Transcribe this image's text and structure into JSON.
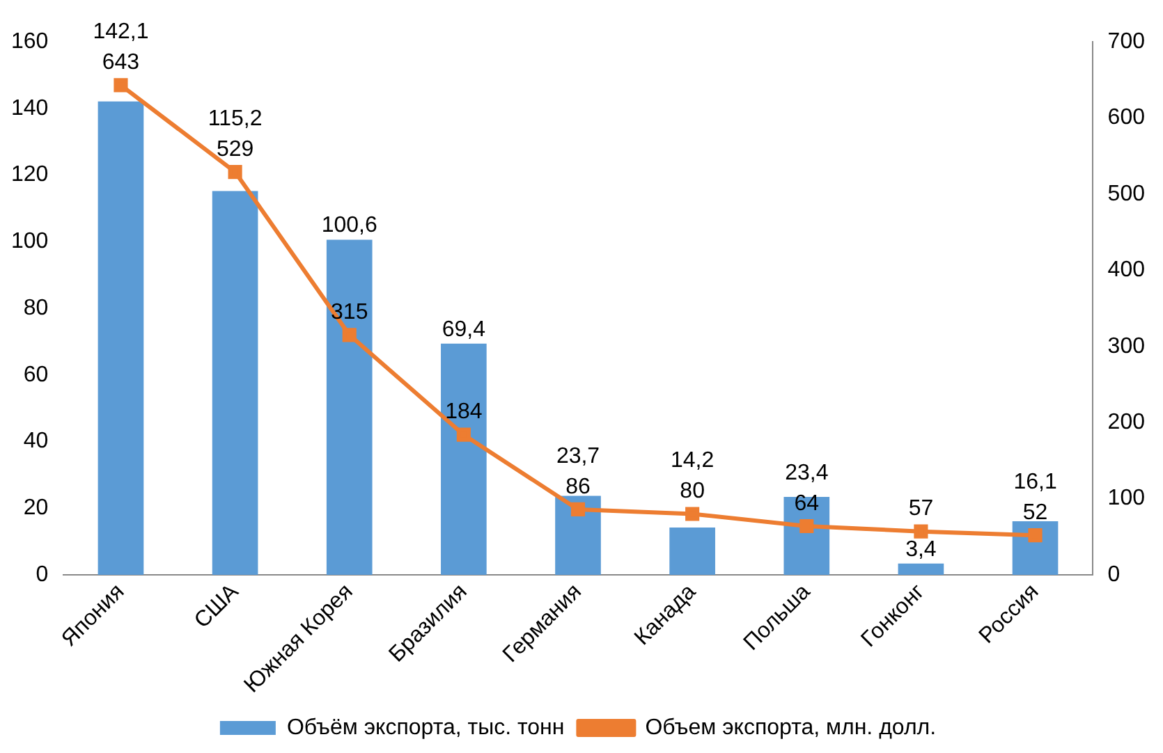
{
  "chart_data": {
    "type": "bar",
    "categories": [
      "Япония",
      "США",
      "Южная Корея",
      "Бразилия",
      "Германия",
      "Канада",
      "Польша",
      "Гонконг",
      "Россия"
    ],
    "series": [
      {
        "name": "Объём экспорта, тыс. тонн",
        "color": "#5b9bd5",
        "values": [
          142.1,
          115.2,
          100.6,
          69.4,
          23.7,
          14.2,
          23.4,
          3.4,
          16.1
        ],
        "value_labels": [
          "142,1",
          "115,2",
          "100,6",
          "69,4",
          "23,7",
          "14,2",
          "23,4",
          "3,4",
          "16,1"
        ]
      },
      {
        "name": "Объем экспорта, млн. долл.",
        "type": "line",
        "axis": "y2",
        "color": "#ed7d31",
        "marker": "square",
        "values": [
          643,
          529,
          315,
          184,
          86,
          80,
          64,
          57,
          52
        ],
        "value_labels": [
          "643",
          "529",
          "315",
          "184",
          "86",
          "80",
          "64",
          "57",
          "52"
        ]
      }
    ],
    "ylim": [
      0,
      160
    ],
    "yticks": [
      0,
      20,
      40,
      60,
      80,
      100,
      120,
      140,
      160
    ],
    "y2lim": [
      0,
      700
    ],
    "y2ticks": [
      0,
      100,
      200,
      300,
      400,
      500,
      600,
      700
    ],
    "grid": false,
    "legend": "bottom"
  }
}
